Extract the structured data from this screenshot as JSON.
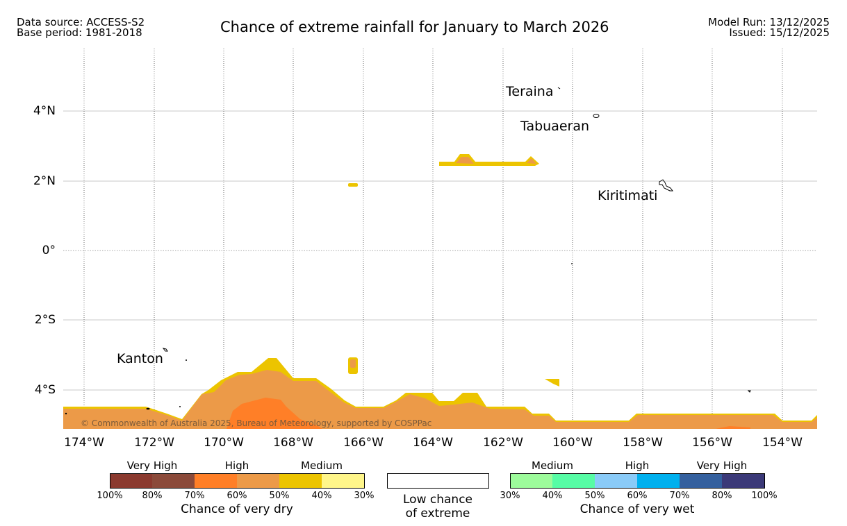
{
  "header": {
    "data_source": "Data source: ACCESS-S2",
    "base_period": "Base period: 1981-2018",
    "title": "Chance of extreme rainfall for January to March 2026",
    "model_run": "Model Run: 13/12/2025",
    "issued": "Issued: 15/12/2025"
  },
  "map": {
    "lat_labels": [
      "4°N",
      "2°N",
      "0°",
      "2°S",
      "4°S"
    ],
    "lon_labels": [
      "174°W",
      "172°W",
      "170°W",
      "168°W",
      "166°W",
      "164°W",
      "162°W",
      "160°W",
      "158°W",
      "156°W",
      "154°W"
    ],
    "places": {
      "teraina": "Teraina",
      "tabuaeran": "Tabuaeran",
      "kiritimati": "Kiritimati",
      "kanton": "Kanton"
    },
    "copyright": "© Commonwealth of Australia 2025, Bureau of Meteorology, supported by COSPPac"
  },
  "legend": {
    "dry": {
      "groups": [
        "Very High",
        "High",
        "Medium"
      ],
      "ticks": [
        "100%",
        "80%",
        "70%",
        "60%",
        "50%",
        "40%",
        "30%"
      ],
      "colors": [
        "#8b3a2f",
        "#8b4a3a",
        "#ff7f27",
        "#ec9a48",
        "#ecc400",
        "#fff68a"
      ],
      "caption": "Chance of very dry"
    },
    "low": {
      "line1": "Low chance",
      "line2": "of extreme"
    },
    "wet": {
      "groups": [
        "Medium",
        "High",
        "Very High"
      ],
      "ticks": [
        "30%",
        "40%",
        "50%",
        "60%",
        "70%",
        "80%",
        "100%"
      ],
      "colors": [
        "#9dfb9b",
        "#57fca5",
        "#8acbf8",
        "#00b0ee",
        "#34609e",
        "#3b3978"
      ],
      "caption": "Chance of very wet"
    }
  }
}
